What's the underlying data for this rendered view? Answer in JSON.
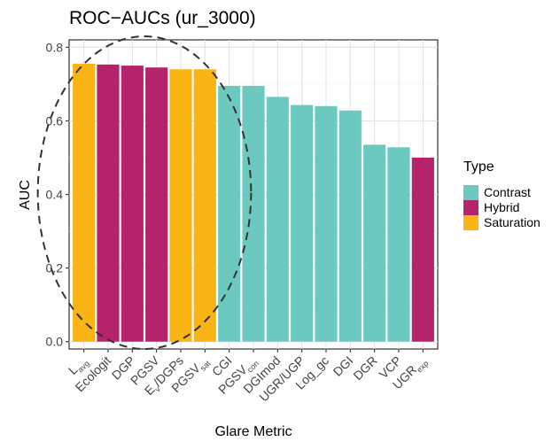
{
  "chart_data": {
    "type": "bar",
    "title": "ROC−AUCs (ur_3000)",
    "xlabel": "Glare Metric",
    "ylabel": "AUC",
    "ylim": [
      -0.02,
      0.82
    ],
    "yticks": [
      "0.0",
      "0.2",
      "0.4",
      "0.6",
      "0.8"
    ],
    "grid": true,
    "legend": {
      "title": "Type",
      "placement": "right",
      "entries": [
        {
          "name": "Contrast",
          "color": "#6CC9BF"
        },
        {
          "name": "Hybrid",
          "color": "#B5236A"
        },
        {
          "name": "Saturation",
          "color": "#FBB415"
        }
      ]
    },
    "bars": [
      {
        "label": "L",
        "sub": "avg",
        "value": 0.755,
        "type": "Saturation"
      },
      {
        "label": "Ecologit",
        "sub": "",
        "value": 0.753,
        "type": "Hybrid"
      },
      {
        "label": "DGP",
        "sub": "",
        "value": 0.75,
        "type": "Hybrid"
      },
      {
        "label": "PGSV",
        "sub": "",
        "value": 0.745,
        "type": "Hybrid"
      },
      {
        "label": "E",
        "sub": "v",
        "suffix": "/DGPs",
        "value": 0.74,
        "type": "Saturation"
      },
      {
        "label": "PGSV",
        "sub": "sat",
        "value": 0.74,
        "type": "Saturation"
      },
      {
        "label": "CGI",
        "sub": "",
        "value": 0.695,
        "type": "Contrast"
      },
      {
        "label": "PGSV",
        "sub": "con",
        "value": 0.695,
        "type": "Contrast"
      },
      {
        "label": "DGImod",
        "sub": "",
        "value": 0.665,
        "type": "Contrast"
      },
      {
        "label": "UGR/UGP",
        "sub": "",
        "value": 0.643,
        "type": "Contrast"
      },
      {
        "label": "Log_gc",
        "sub": "",
        "value": 0.64,
        "type": "Contrast"
      },
      {
        "label": "DGI",
        "sub": "",
        "value": 0.628,
        "type": "Contrast"
      },
      {
        "label": "DGR",
        "sub": "",
        "value": 0.535,
        "type": "Contrast"
      },
      {
        "label": "VCP",
        "sub": "",
        "value": 0.528,
        "type": "Contrast"
      },
      {
        "label": "UGR",
        "sub": "exp",
        "value": 0.5,
        "type": "Hybrid"
      }
    ],
    "annotation": {
      "shape": "dashed-ellipse",
      "encloses": [
        "L",
        "Ecologit",
        "DGP",
        "PGSV",
        "E",
        "PGSV"
      ]
    }
  }
}
